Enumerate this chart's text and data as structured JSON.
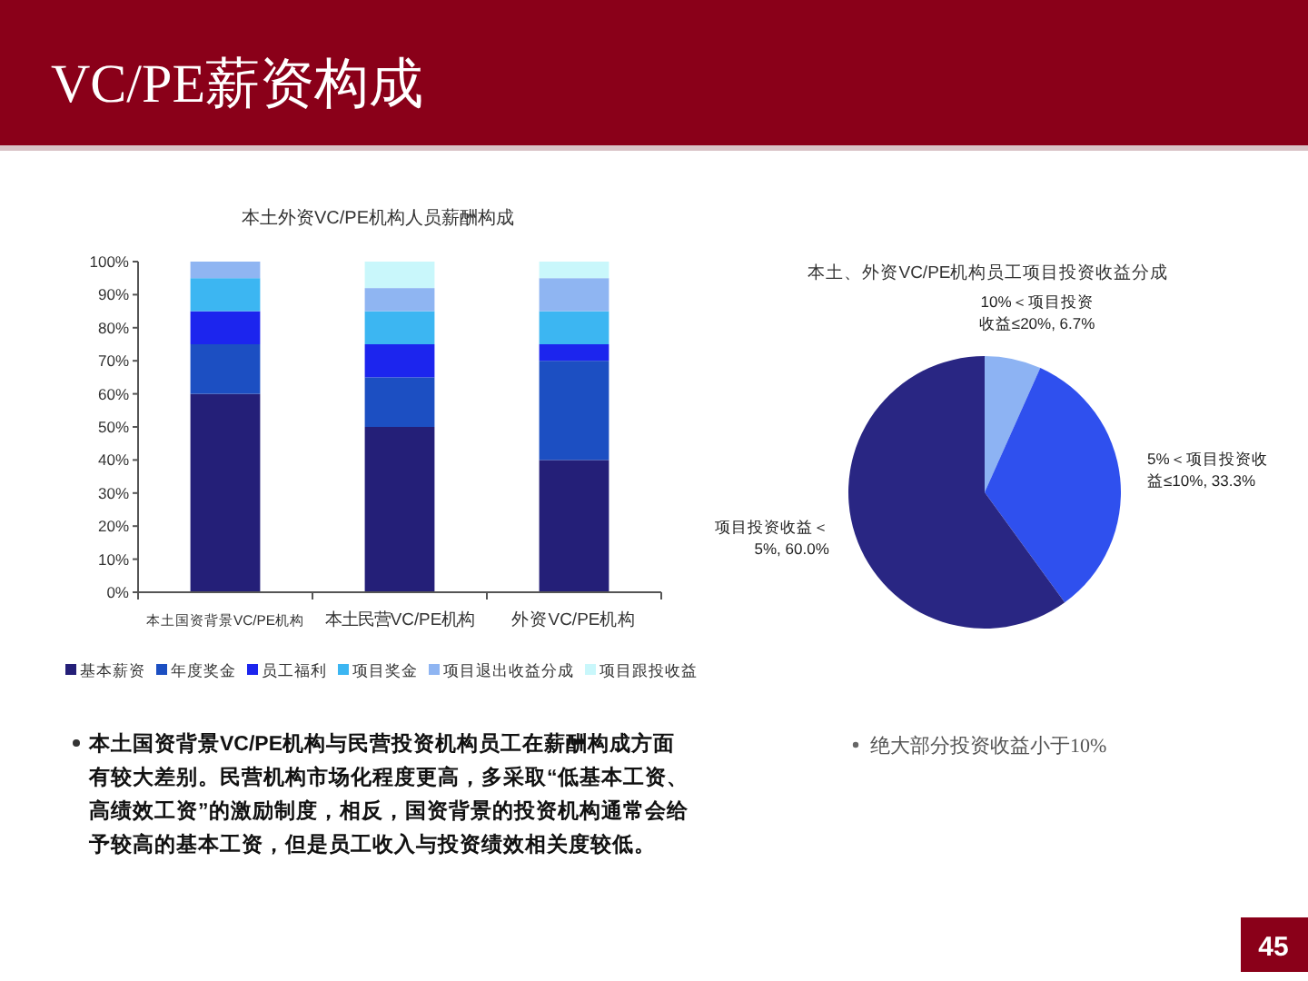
{
  "chart_data": [
    {
      "type": "other",
      "title": "VC/PE薪资构成",
      "annotations": [
        "45"
      ]
    },
    {
      "type": "bar",
      "stacked": true,
      "title": "本土外资VC/PE机构人员薪酬构成",
      "categories": [
        "本土国资背景VC/PE机构",
        "本土民营VC/PE机构",
        "外资VC/PE机构"
      ],
      "series": [
        {
          "name": "基本薪资",
          "color": "#241f78",
          "values": [
            60,
            50,
            40
          ]
        },
        {
          "name": "年度奖金",
          "color": "#1c4fc2",
          "values": [
            15,
            15,
            30
          ]
        },
        {
          "name": "员工福利",
          "color": "#1c25ee",
          "values": [
            10,
            10,
            5
          ]
        },
        {
          "name": "项目奖金",
          "color": "#3cb6f2",
          "values": [
            10,
            10,
            10
          ]
        },
        {
          "name": "项目退出收益分成",
          "color": "#8fb5f2",
          "values": [
            5,
            7,
            10
          ]
        },
        {
          "name": "项目跟投收益",
          "color": "#c9f7fb",
          "values": [
            null,
            8,
            5
          ]
        }
      ],
      "ylim": [
        0,
        100
      ],
      "yticks": [
        {
          "value": 0,
          "label": "0%"
        },
        {
          "value": 10,
          "label": "10%"
        },
        {
          "value": 20,
          "label": "20%"
        },
        {
          "value": 30,
          "label": "30%"
        },
        {
          "value": 40,
          "label": "40%"
        },
        {
          "value": 50,
          "label": "50%"
        },
        {
          "value": 60,
          "label": "60%"
        },
        {
          "value": 70,
          "label": "70%"
        },
        {
          "value": 80,
          "label": "80%"
        },
        {
          "value": 90,
          "label": "90%"
        },
        {
          "value": 100,
          "label": "100%"
        }
      ],
      "legend": "bottom",
      "annotations": [
        "本土国资背景VC/PE机构与民营投资机构员工在薪酬构成方面有较大差别。民营机构市场化程度更高，多采取“低基本工资、高绩效工资”的激励制度，相反，国资背景的投资机构通常会给予较高的基本工资，但是员工收入与投资绩效相关度较低。"
      ]
    },
    {
      "type": "pie",
      "title": "本土、外资VC/PE机构员工项目投资收益分成",
      "categories": [
        "10%＜项目投资收益≤20%",
        "5%＜项目投资收益≤10%",
        "项目投资收益＜5%"
      ],
      "values": [
        6.7,
        33.3,
        60.0
      ],
      "colors": [
        "#8db3f3",
        "#2f50ee",
        "#292683"
      ],
      "value_labels": [
        "6.7%",
        "33.3%",
        "60.0%"
      ],
      "annotations": [
        "绝大部分投资收益小于10%"
      ]
    }
  ]
}
